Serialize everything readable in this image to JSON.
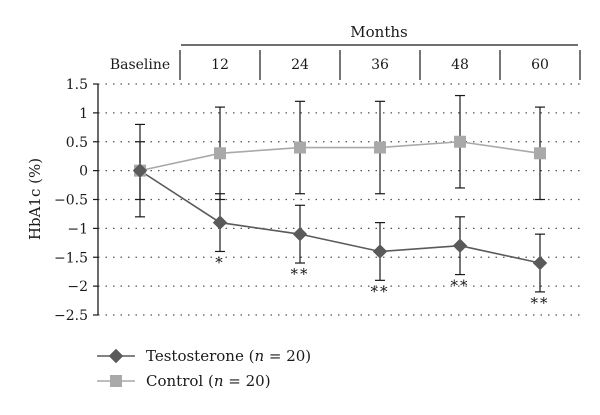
{
  "chart_data": {
    "type": "line",
    "x_group_label": "Months",
    "categories": [
      "Baseline",
      "12",
      "24",
      "36",
      "48",
      "60"
    ],
    "ylabel": "HbA1c (%)",
    "ylim": [
      -2.5,
      1.5
    ],
    "yticks": [
      "1.5",
      "1",
      "0.5",
      "0",
      "−0.5",
      "−1",
      "−1.5",
      "−2",
      "−2.5"
    ],
    "grid": true,
    "legend_position": "bottom-left",
    "series": [
      {
        "name": "Testosterone (n = 20)",
        "name_main": "Testosterone (",
        "name_var": "n",
        "name_rest": " = 20)",
        "marker": "diamond",
        "color": "#5a5a5a",
        "values": [
          0,
          -0.9,
          -1.1,
          -1.4,
          -1.3,
          -1.6
        ],
        "err_low": [
          -0.8,
          -1.4,
          -1.6,
          -1.9,
          -1.8,
          -2.1
        ],
        "err_high": [
          0.8,
          -0.4,
          -0.6,
          -0.9,
          -0.8,
          -1.1
        ],
        "significance": [
          "",
          "*",
          "**",
          "**",
          "**",
          "**"
        ]
      },
      {
        "name": "Control (n = 20)",
        "name_main": "Control (",
        "name_var": "n",
        "name_rest": " = 20)",
        "marker": "square",
        "color": "#a9a9a9",
        "values": [
          0,
          0.3,
          0.4,
          0.4,
          0.5,
          0.3
        ],
        "err_low": [
          -0.5,
          -0.5,
          -0.4,
          -0.4,
          -0.3,
          -0.5
        ],
        "err_high": [
          0.5,
          1.1,
          1.2,
          1.2,
          1.3,
          1.1
        ]
      }
    ]
  }
}
